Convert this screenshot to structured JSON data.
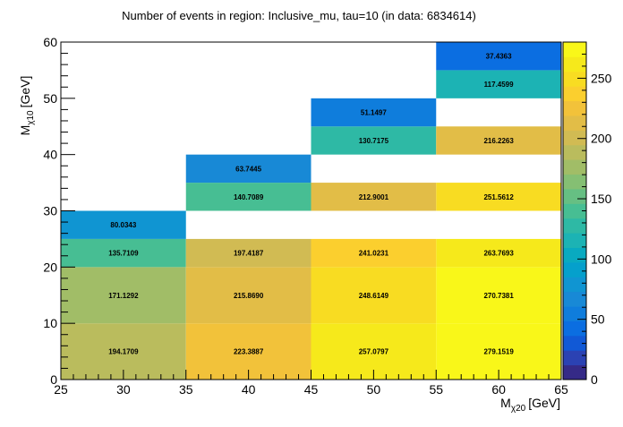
{
  "chart_data": {
    "type": "heatmap",
    "title": "Number of events in region: Inclusive_mu, tau=10 (in data: 6834614)",
    "xlabel_main": "M",
    "xlabel_sub": "χ20",
    "xlabel_unit": "[GeV]",
    "ylabel_main": "M",
    "ylabel_sub": "χ10",
    "ylabel_unit": "[GeV]",
    "xlim": [
      25,
      65
    ],
    "ylim": [
      0,
      60
    ],
    "zlim": [
      0,
      280
    ],
    "x_ticks": [
      25,
      30,
      35,
      40,
      45,
      50,
      55,
      60,
      65
    ],
    "y_ticks": [
      0,
      10,
      20,
      30,
      40,
      50,
      60
    ],
    "z_ticks": [
      0,
      50,
      100,
      150,
      200,
      250
    ],
    "cells": [
      {
        "x0": 25,
        "x1": 35,
        "y0": 0,
        "y1": 10,
        "value": 194.1709,
        "label": "194.1709"
      },
      {
        "x0": 25,
        "x1": 35,
        "y0": 10,
        "y1": 20,
        "value": 171.1292,
        "label": "171.1292"
      },
      {
        "x0": 25,
        "x1": 35,
        "y0": 20,
        "y1": 25,
        "value": 135.7109,
        "label": "135.7109"
      },
      {
        "x0": 25,
        "x1": 35,
        "y0": 25,
        "y1": 30,
        "value": 80.0343,
        "label": "80.0343"
      },
      {
        "x0": 35,
        "x1": 45,
        "y0": 0,
        "y1": 10,
        "value": 223.3887,
        "label": "223.3887"
      },
      {
        "x0": 35,
        "x1": 45,
        "y0": 10,
        "y1": 20,
        "value": 215.869,
        "label": "215.8690"
      },
      {
        "x0": 35,
        "x1": 45,
        "y0": 20,
        "y1": 25,
        "value": 197.4187,
        "label": "197.4187"
      },
      {
        "x0": 35,
        "x1": 45,
        "y0": 30,
        "y1": 35,
        "value": 140.7089,
        "label": "140.7089"
      },
      {
        "x0": 35,
        "x1": 45,
        "y0": 35,
        "y1": 40,
        "value": 63.7445,
        "label": "63.7445"
      },
      {
        "x0": 45,
        "x1": 55,
        "y0": 0,
        "y1": 10,
        "value": 257.0797,
        "label": "257.0797"
      },
      {
        "x0": 45,
        "x1": 55,
        "y0": 10,
        "y1": 20,
        "value": 248.6149,
        "label": "248.6149"
      },
      {
        "x0": 45,
        "x1": 55,
        "y0": 20,
        "y1": 25,
        "value": 241.0231,
        "label": "241.0231"
      },
      {
        "x0": 45,
        "x1": 55,
        "y0": 30,
        "y1": 35,
        "value": 212.9001,
        "label": "212.9001"
      },
      {
        "x0": 45,
        "x1": 55,
        "y0": 40,
        "y1": 45,
        "value": 130.7175,
        "label": "130.7175"
      },
      {
        "x0": 45,
        "x1": 55,
        "y0": 45,
        "y1": 50,
        "value": 51.1497,
        "label": "51.1497"
      },
      {
        "x0": 55,
        "x1": 65,
        "y0": 0,
        "y1": 10,
        "value": 279.1519,
        "label": "279.1519"
      },
      {
        "x0": 55,
        "x1": 65,
        "y0": 10,
        "y1": 20,
        "value": 270.7381,
        "label": "270.7381"
      },
      {
        "x0": 55,
        "x1": 65,
        "y0": 20,
        "y1": 25,
        "value": 263.7693,
        "label": "263.7693"
      },
      {
        "x0": 55,
        "x1": 65,
        "y0": 30,
        "y1": 35,
        "value": 251.5612,
        "label": "251.5612"
      },
      {
        "x0": 55,
        "x1": 65,
        "y0": 40,
        "y1": 45,
        "value": 216.2263,
        "label": "216.2263"
      },
      {
        "x0": 55,
        "x1": 65,
        "y0": 50,
        "y1": 55,
        "value": 117.4599,
        "label": "117.4599"
      },
      {
        "x0": 55,
        "x1": 65,
        "y0": 55,
        "y1": 60,
        "value": 37.4363,
        "label": "37.4363"
      }
    ],
    "palette": [
      "#352a87",
      "#2b42b3",
      "#1159d6",
      "#0b6ee1",
      "#0f7ddc",
      "#1889d6",
      "#1095d2",
      "#05a0cc",
      "#09aac0",
      "#1cb3b4",
      "#2eb9a5",
      "#47be93",
      "#66bf83",
      "#85bf73",
      "#a1bd67",
      "#babc5d",
      "#d1bb53",
      "#e2bd47",
      "#f2c23a",
      "#fbcf2e",
      "#f8dc22",
      "#f6e91b",
      "#f9f719"
    ],
    "grid": false,
    "colorbar": "right"
  }
}
